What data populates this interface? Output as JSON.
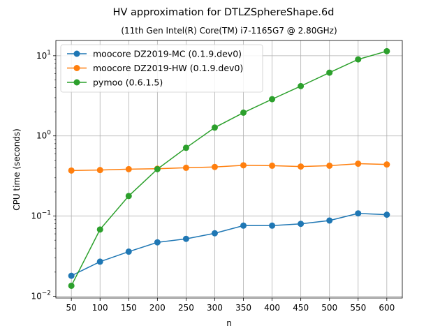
{
  "chart_data": {
    "type": "line",
    "title": "HV approximation for DTLZSphereShape.6d",
    "subtitle": "(11th Gen Intel(R) Core(TM) i7-1165G7 @ 2.80GHz)",
    "xlabel": "n",
    "ylabel": "CPU time (seconds)",
    "yscale": "log",
    "grid": true,
    "legend_position": "top-left",
    "x": [
      50,
      100,
      150,
      200,
      250,
      300,
      350,
      400,
      450,
      500,
      550,
      600
    ],
    "xticks": [
      "50",
      "100",
      "150",
      "200",
      "250",
      "300",
      "350",
      "400",
      "450",
      "500",
      "550",
      "600"
    ],
    "xlim": [
      23,
      627
    ],
    "ylim": [
      0.0095,
      15.5
    ],
    "yticks": [
      {
        "value": 0.01,
        "base": "10",
        "exp": "−2"
      },
      {
        "value": 0.1,
        "base": "10",
        "exp": "−1"
      },
      {
        "value": 1,
        "base": "10",
        "exp": "0"
      },
      {
        "value": 10,
        "base": "10",
        "exp": "1"
      }
    ],
    "series": [
      {
        "name": "moocore DZ2019-MC (0.1.9.dev0)",
        "color": "#1f77b4",
        "values": [
          0.018,
          0.027,
          0.036,
          0.047,
          0.052,
          0.061,
          0.076,
          0.076,
          0.08,
          0.088,
          0.108,
          0.104
        ]
      },
      {
        "name": "moocore DZ2019-HW (0.1.9.dev0)",
        "color": "#ff7f0e",
        "values": [
          0.37,
          0.375,
          0.385,
          0.39,
          0.4,
          0.41,
          0.43,
          0.425,
          0.415,
          0.425,
          0.45,
          0.44
        ]
      },
      {
        "name": "pymoo (0.6.1.5)",
        "color": "#2ca02c",
        "values": [
          0.0135,
          0.068,
          0.178,
          0.385,
          0.71,
          1.27,
          1.95,
          2.87,
          4.18,
          6.15,
          9.0,
          11.4
        ]
      }
    ]
  }
}
